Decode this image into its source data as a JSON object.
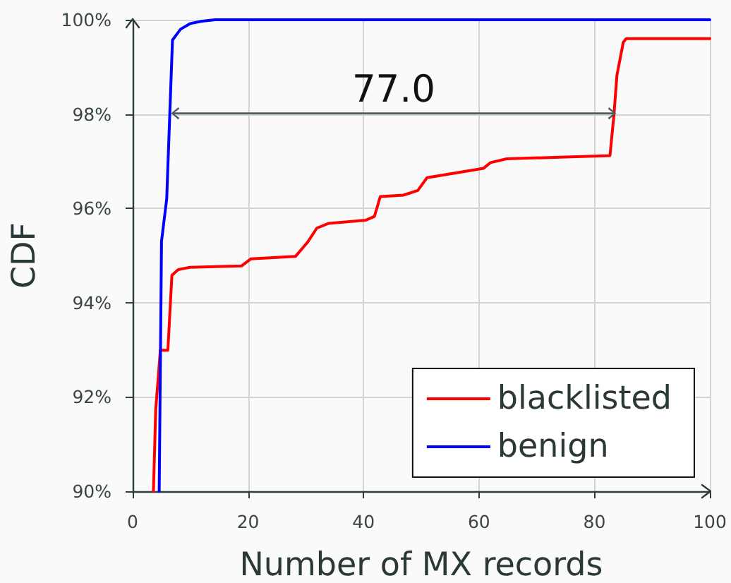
{
  "chart_data": {
    "type": "line",
    "xlabel": "Number of MX records",
    "ylabel": "CDF",
    "series": [
      {
        "name": "blacklisted",
        "color": "#ff0000",
        "x": [
          3.6,
          4.0,
          4.8,
          6.1,
          6.8,
          7.9,
          9.9,
          18.9,
          20.5,
          28.2,
          30.3,
          31.9,
          33.9,
          40.4,
          41.9,
          42.9,
          46.9,
          49.4,
          51.0,
          60.8,
          62.0,
          64.8,
          82.7,
          83.4,
          83.9,
          85.0,
          85.5,
          100
        ],
        "values": [
          90,
          91.74,
          92.99,
          92.99,
          94.58,
          94.7,
          94.75,
          94.78,
          94.93,
          94.98,
          95.28,
          95.58,
          95.68,
          95.75,
          95.83,
          96.25,
          96.28,
          96.38,
          96.65,
          96.85,
          96.97,
          97.05,
          97.12,
          98.0,
          98.82,
          99.52,
          99.6,
          99.6
        ]
      },
      {
        "name": "benign",
        "color": "#0000ff",
        "x": [
          4.6,
          5.0,
          5.9,
          6.9,
          8.3,
          10,
          12,
          14.3,
          100
        ],
        "values": [
          90,
          95.3,
          96.2,
          99.57,
          99.8,
          99.92,
          99.97,
          100,
          100
        ]
      }
    ],
    "xlim": [
      0,
      100
    ],
    "xticks": [
      0,
      20,
      40,
      60,
      80,
      100
    ],
    "ylim": [
      90,
      100
    ],
    "yticks": [
      {
        "value": 90,
        "label": "90%"
      },
      {
        "value": 92,
        "label": "92%"
      },
      {
        "value": 94,
        "label": "94%"
      },
      {
        "value": 96,
        "label": "96%"
      },
      {
        "value": 98,
        "label": "98%"
      },
      {
        "value": 100,
        "label": "100%"
      }
    ],
    "annotations": [
      "77.0"
    ],
    "grid": true,
    "legend": "bottom right"
  }
}
